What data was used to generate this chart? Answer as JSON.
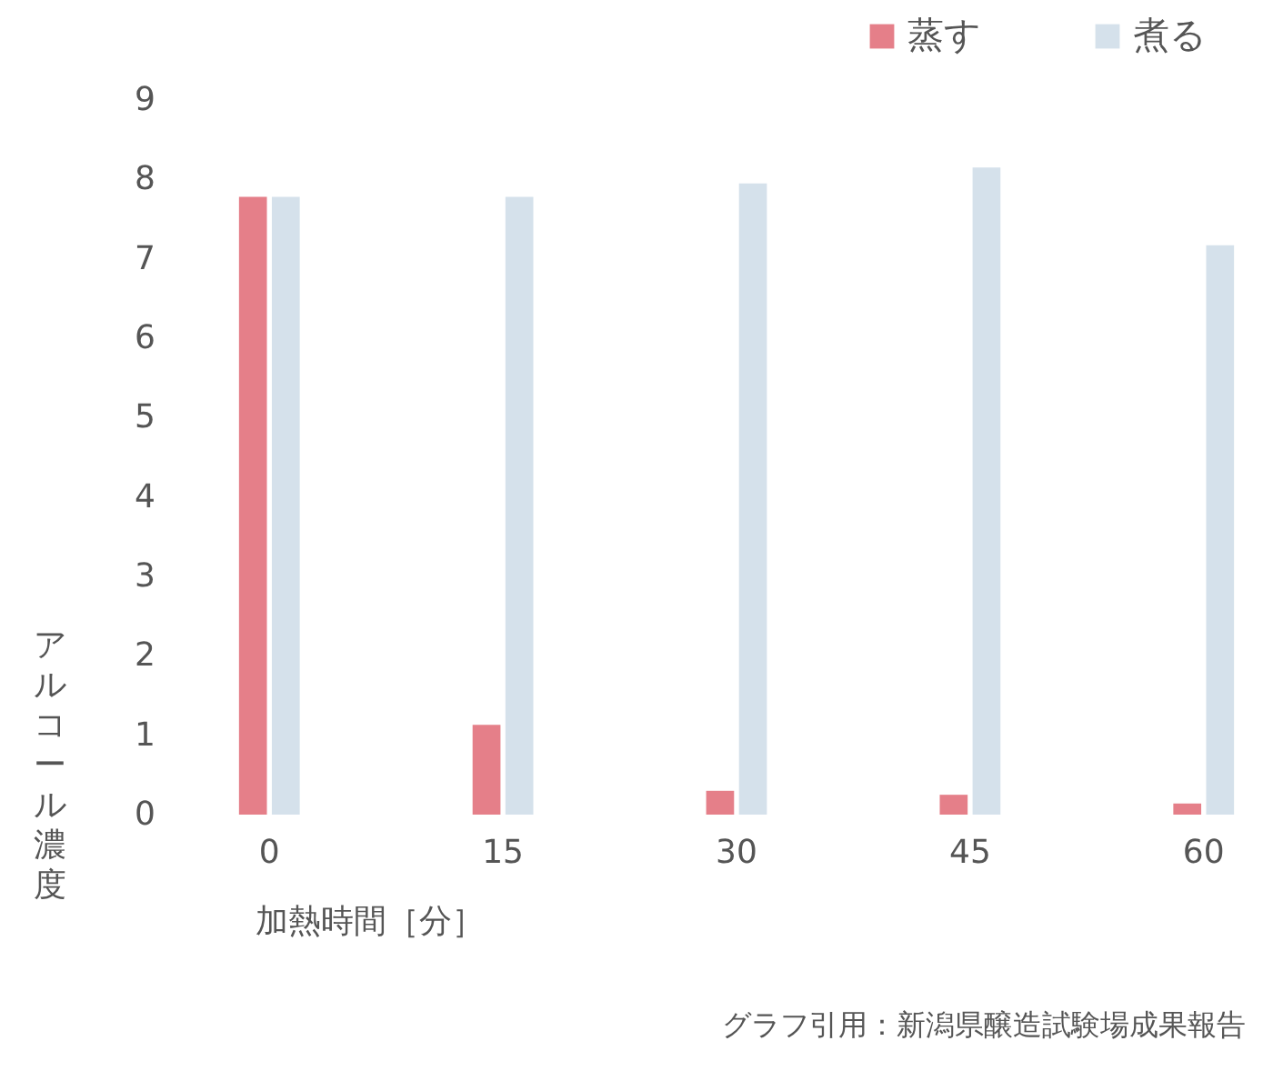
{
  "chart_data": {
    "type": "bar",
    "categories": [
      "0",
      "15",
      "30",
      "45",
      "60"
    ],
    "series": [
      {
        "name": "蒸す",
        "color": "#e57f89",
        "values": [
          7.78,
          1.13,
          0.3,
          0.25,
          0.14
        ]
      },
      {
        "name": "煮る",
        "color": "#d5e1eb",
        "values": [
          7.78,
          7.78,
          7.95,
          8.15,
          7.17
        ]
      }
    ],
    "xlabel": "加熱時間［分］",
    "ylabel": "アルコール濃度",
    "ylim": [
      0,
      9
    ],
    "yticks": [
      0,
      1,
      2,
      3,
      4,
      5,
      6,
      7,
      8,
      9
    ],
    "grid": false,
    "legend": "top right",
    "annotations": [
      "グラフ引用：新潟県醸造試験場成果報告"
    ]
  }
}
